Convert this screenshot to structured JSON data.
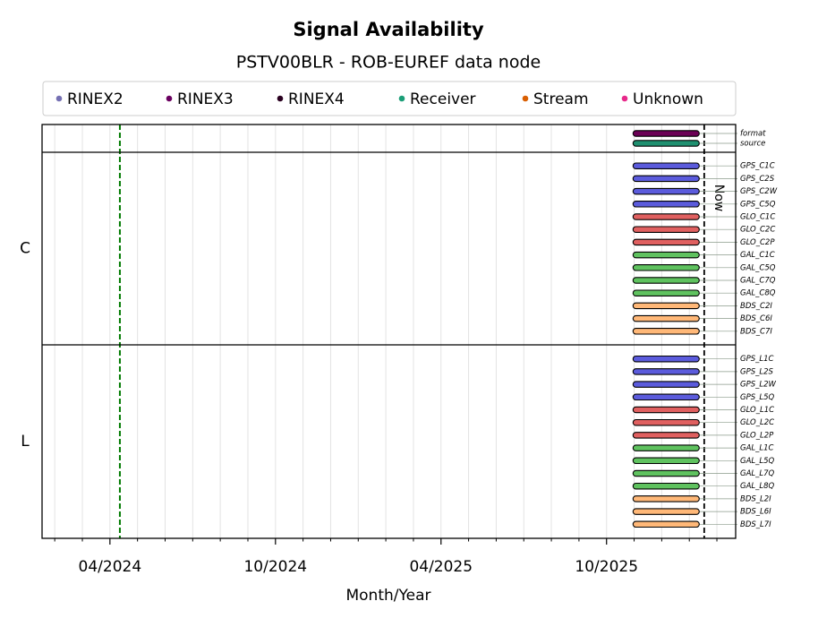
{
  "chart_data": {
    "type": "timeline",
    "title": "Signal Availability",
    "subtitle": "PSTV00BLR - ROB-EUREF data node",
    "xlabel": "Month/Year",
    "legend": [
      {
        "name": "RINEX2",
        "color": "#7570b3"
      },
      {
        "name": "RINEX3",
        "color": "#6a0060"
      },
      {
        "name": "RINEX4",
        "color": "#2a0020"
      },
      {
        "name": "Receiver",
        "color": "#1b9e77"
      },
      {
        "name": "Stream",
        "color": "#d95f02"
      },
      {
        "name": "Unknown",
        "color": "#e7298a"
      }
    ],
    "xlim": [
      2024.045,
      2026.14
    ],
    "xticks": [
      {
        "value": 2024.25,
        "label": "04/2024"
      },
      {
        "value": 2024.75,
        "label": "10/2024"
      },
      {
        "value": 2025.25,
        "label": "04/2025"
      },
      {
        "value": 2025.75,
        "label": "10/2025"
      }
    ],
    "xminorticks": [
      2024.0833,
      2024.1667,
      2024.3333,
      2024.4167,
      2024.5,
      2024.5833,
      2024.6667,
      2024.8333,
      2024.9167,
      2025.0,
      2025.0833,
      2025.1667,
      2025.3333,
      2025.4167,
      2025.5,
      2025.5833,
      2025.6667,
      2025.8333,
      2025.9167,
      2026.0,
      2026.0833
    ],
    "grid": true,
    "reference_line": {
      "value": 2024.28,
      "color": "#007a00"
    },
    "now_line": {
      "value": 2026.045,
      "label": "Now"
    },
    "panels": [
      {
        "rows": [
          {
            "name": "format",
            "color": "#6b0055",
            "start": 2025.83,
            "end": 2026.03
          },
          {
            "name": "source",
            "color": "#1f9070",
            "start": 2025.83,
            "end": 2026.03
          }
        ]
      },
      {
        "label": "C",
        "rows": [
          {
            "name": "GPS_C1C",
            "color": "#5b5bdc",
            "start": 2025.83,
            "end": 2026.03
          },
          {
            "name": "GPS_C2S",
            "color": "#5b5bdc",
            "start": 2025.83,
            "end": 2026.03
          },
          {
            "name": "GPS_C2W",
            "color": "#5b5bdc",
            "start": 2025.83,
            "end": 2026.03
          },
          {
            "name": "GPS_C5Q",
            "color": "#5b5bdc",
            "start": 2025.83,
            "end": 2026.03
          },
          {
            "name": "GLO_C1C",
            "color": "#e06060",
            "start": 2025.83,
            "end": 2026.03
          },
          {
            "name": "GLO_C2C",
            "color": "#e06060",
            "start": 2025.83,
            "end": 2026.03
          },
          {
            "name": "GLO_C2P",
            "color": "#e06060",
            "start": 2025.83,
            "end": 2026.03
          },
          {
            "name": "GAL_C1C",
            "color": "#5fc25f",
            "start": 2025.83,
            "end": 2026.03
          },
          {
            "name": "GAL_C5Q",
            "color": "#5fc25f",
            "start": 2025.83,
            "end": 2026.03
          },
          {
            "name": "GAL_C7Q",
            "color": "#5fc25f",
            "start": 2025.83,
            "end": 2026.03
          },
          {
            "name": "GAL_C8Q",
            "color": "#5fc25f",
            "start": 2025.83,
            "end": 2026.03
          },
          {
            "name": "BDS_C2I",
            "color": "#ffb878",
            "start": 2025.83,
            "end": 2026.03
          },
          {
            "name": "BDS_C6I",
            "color": "#ffb878",
            "start": 2025.83,
            "end": 2026.03
          },
          {
            "name": "BDS_C7I",
            "color": "#ffb878",
            "start": 2025.83,
            "end": 2026.03
          }
        ]
      },
      {
        "label": "L",
        "rows": [
          {
            "name": "GPS_L1C",
            "color": "#5b5bdc",
            "start": 2025.83,
            "end": 2026.03
          },
          {
            "name": "GPS_L2S",
            "color": "#5b5bdc",
            "start": 2025.83,
            "end": 2026.03
          },
          {
            "name": "GPS_L2W",
            "color": "#5b5bdc",
            "start": 2025.83,
            "end": 2026.03
          },
          {
            "name": "GPS_L5Q",
            "color": "#5b5bdc",
            "start": 2025.83,
            "end": 2026.03
          },
          {
            "name": "GLO_L1C",
            "color": "#e06060",
            "start": 2025.83,
            "end": 2026.03
          },
          {
            "name": "GLO_L2C",
            "color": "#e06060",
            "start": 2025.83,
            "end": 2026.03
          },
          {
            "name": "GLO_L2P",
            "color": "#e06060",
            "start": 2025.83,
            "end": 2026.03
          },
          {
            "name": "GAL_L1C",
            "color": "#5fc25f",
            "start": 2025.83,
            "end": 2026.03
          },
          {
            "name": "GAL_L5Q",
            "color": "#5fc25f",
            "start": 2025.83,
            "end": 2026.03
          },
          {
            "name": "GAL_L7Q",
            "color": "#5fc25f",
            "start": 2025.83,
            "end": 2026.03
          },
          {
            "name": "GAL_L8Q",
            "color": "#5fc25f",
            "start": 2025.83,
            "end": 2026.03
          },
          {
            "name": "BDS_L2I",
            "color": "#ffb878",
            "start": 2025.83,
            "end": 2026.03
          },
          {
            "name": "BDS_L6I",
            "color": "#ffb878",
            "start": 2025.83,
            "end": 2026.03
          },
          {
            "name": "BDS_L7I",
            "color": "#ffb878",
            "start": 2025.83,
            "end": 2026.03
          }
        ]
      }
    ]
  }
}
